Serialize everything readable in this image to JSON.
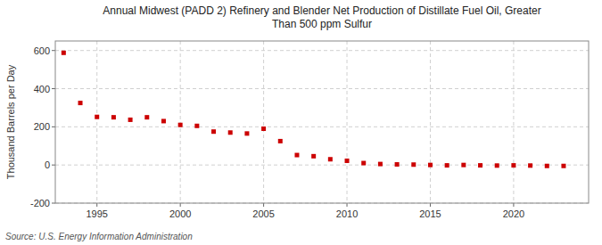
{
  "chart_data": {
    "type": "scatter",
    "title": "Annual Midwest (PADD 2) Refinery and Blender Net Production of Distillate Fuel Oil, Greater\nThan 500 ppm Sulfur",
    "ylabel": "Thousand Barrels per Day",
    "source": "Source: U.S. Energy Information Administration",
    "x": [
      1993,
      1994,
      1995,
      1996,
      1997,
      1998,
      1999,
      2000,
      2001,
      2002,
      2003,
      2004,
      2005,
      2006,
      2007,
      2008,
      2009,
      2010,
      2011,
      2012,
      2013,
      2014,
      2015,
      2016,
      2017,
      2018,
      2019,
      2020,
      2021,
      2022,
      2023
    ],
    "values": [
      588,
      325,
      252,
      250,
      237,
      250,
      230,
      210,
      205,
      175,
      170,
      165,
      190,
      125,
      52,
      46,
      30,
      22,
      10,
      5,
      3,
      2,
      0,
      -2,
      0,
      -2,
      -3,
      -2,
      -3,
      -5,
      -5
    ],
    "color": "#cc0000",
    "marker": "square",
    "xlim": [
      1992.5,
      2024.5
    ],
    "xticks": [
      1995,
      2000,
      2005,
      2010,
      2015,
      2020
    ],
    "ylim": [
      -200,
      650
    ],
    "yticks": [
      -200,
      0,
      200,
      400,
      600
    ],
    "grid": true
  }
}
